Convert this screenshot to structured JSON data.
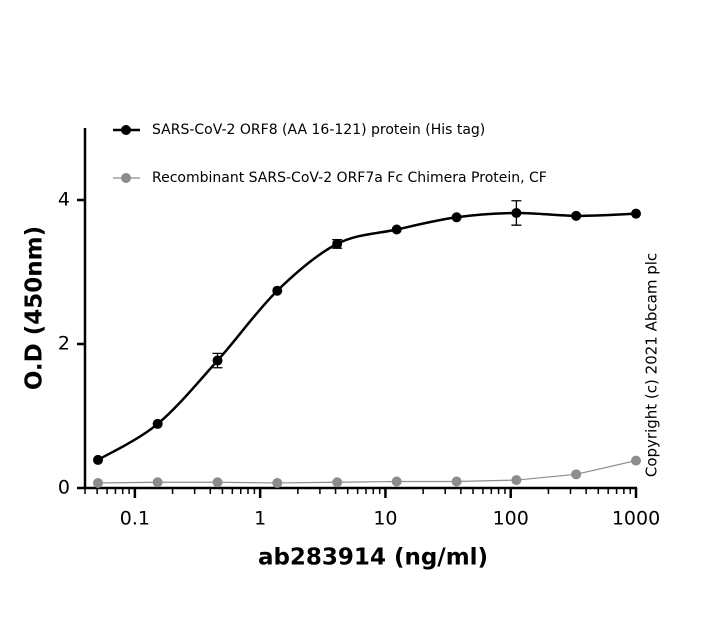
{
  "chart_data": {
    "type": "line",
    "x_label": "ab283914 (ng/ml)",
    "y_label": "O.D (450nm)",
    "annotation": "Copyright (c) 2021 Abcam plc",
    "x": [
      0.0508,
      0.152,
      0.457,
      1.37,
      4.12,
      12.3,
      37,
      111,
      333,
      1000
    ],
    "series": [
      {
        "name": "SARS-CoV-2 ORF8 (AA 16-121) protein (His tag)",
        "color": "#000000",
        "smooth": true,
        "values": [
          0.39,
          0.89,
          1.77,
          2.74,
          3.39,
          3.59,
          3.76,
          3.82,
          3.78,
          3.81
        ],
        "errors": [
          null,
          null,
          0.1,
          null,
          0.06,
          null,
          null,
          0.17,
          null,
          null
        ]
      },
      {
        "name": "Recombinant SARS-CoV-2 ORF7a Fc Chimera Protein, CF",
        "color": "#8c8c8c",
        "smooth": false,
        "values": [
          0.07,
          0.08,
          0.08,
          0.07,
          0.08,
          0.09,
          0.09,
          0.11,
          0.19,
          0.38
        ]
      }
    ],
    "xlog": true,
    "minor_ticks": true,
    "xlim": [
      0.04,
      1000
    ],
    "xticks": [
      0.1,
      1,
      10,
      100,
      1000
    ],
    "ylim": [
      0,
      5
    ],
    "yticks": [
      0,
      2,
      4
    ]
  }
}
